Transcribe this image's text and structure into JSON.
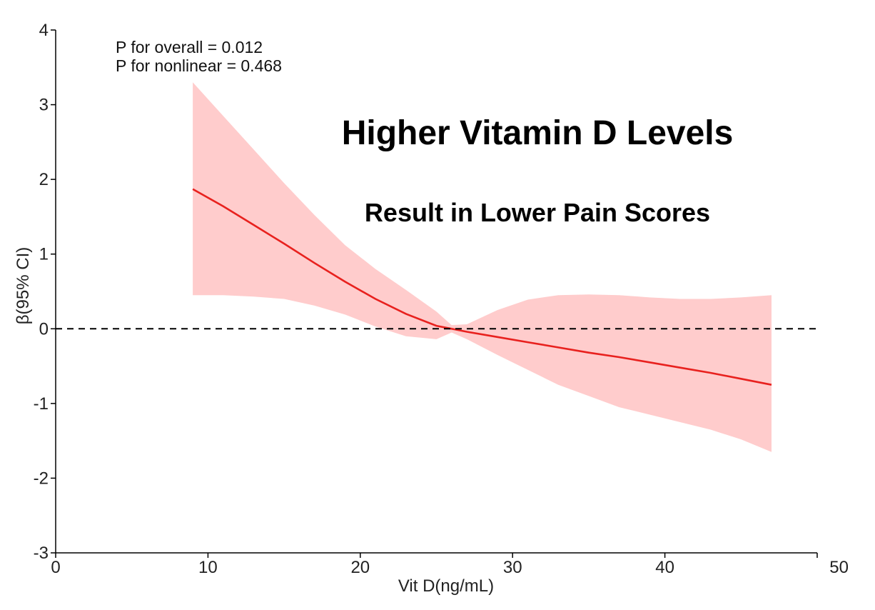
{
  "chart_data": {
    "type": "line",
    "xlabel": "Vit D(ng/mL)",
    "ylabel": "β(95% CI)",
    "xlim": [
      0,
      50
    ],
    "ylim": [
      -3,
      4
    ],
    "x_ticks": [
      {
        "value": 0,
        "label": "0"
      },
      {
        "value": 10,
        "label": "10"
      },
      {
        "value": 20,
        "label": "20"
      },
      {
        "value": 30,
        "label": "30"
      },
      {
        "value": 40,
        "label": "40"
      },
      {
        "value": 50,
        "label": "50"
      }
    ],
    "y_ticks": [
      {
        "value": 4,
        "label": "4"
      },
      {
        "value": 3,
        "label": "3"
      },
      {
        "value": 2,
        "label": "2"
      },
      {
        "value": 1,
        "label": "1"
      },
      {
        "value": 0,
        "label": "0"
      },
      {
        "value": -1,
        "label": "-1"
      },
      {
        "value": -2,
        "label": "-2"
      },
      {
        "value": -3,
        "label": "-3"
      }
    ],
    "reference_line": {
      "y": 0,
      "style": "dashed",
      "color": "#000000"
    },
    "annotations": {
      "p_overall": "P for overall = 0.012",
      "p_nonlinear": "P for nonlinear = 0.468",
      "headline": "Higher Vitamin D Levels",
      "subheadline": "Result in Lower Pain Scores"
    },
    "series": [
      {
        "color": "#e8211e",
        "band_color": "#ffcccc",
        "x": [
          9.0,
          11.0,
          13.0,
          15.0,
          17.0,
          19.0,
          21.0,
          23.0,
          25.0,
          26.0,
          27.0,
          29.0,
          31.0,
          33.0,
          35.0,
          37.0,
          39.0,
          41.0,
          43.0,
          45.0,
          47.0
        ],
        "y": [
          1.87,
          1.64,
          1.39,
          1.14,
          0.88,
          0.63,
          0.4,
          0.2,
          0.04,
          0.0,
          -0.04,
          -0.11,
          -0.18,
          -0.25,
          -0.32,
          -0.38,
          -0.45,
          -0.52,
          -0.59,
          -0.67,
          -0.75
        ],
        "lower": [
          0.45,
          0.45,
          0.43,
          0.4,
          0.31,
          0.19,
          0.03,
          -0.1,
          -0.14,
          -0.05,
          -0.14,
          -0.35,
          -0.55,
          -0.75,
          -0.9,
          -1.05,
          -1.15,
          -1.25,
          -1.35,
          -1.48,
          -1.65
        ],
        "upper": [
          3.3,
          2.85,
          2.4,
          1.95,
          1.52,
          1.12,
          0.8,
          0.52,
          0.23,
          0.05,
          0.06,
          0.25,
          0.39,
          0.45,
          0.46,
          0.45,
          0.42,
          0.4,
          0.4,
          0.42,
          0.45
        ]
      }
    ]
  }
}
